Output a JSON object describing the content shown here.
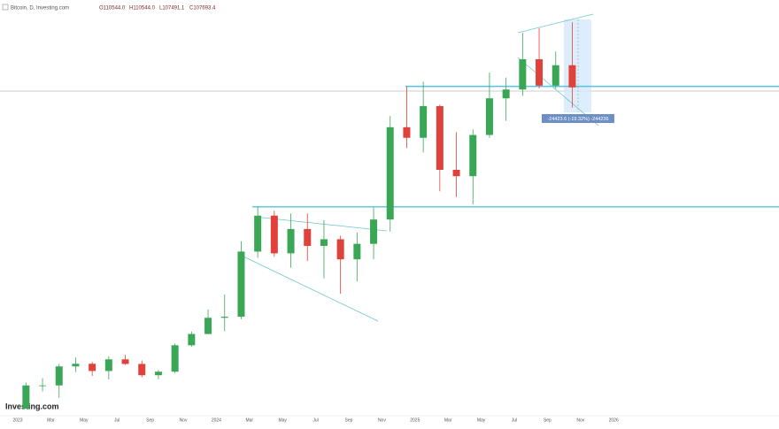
{
  "chart_data": {
    "type": "candlestick",
    "title": "Bitcoin, D, Investing.com",
    "header_values": [
      "O110544.0",
      "H110544.0",
      "L107491.1",
      "C107693.4"
    ],
    "x_labels": [
      "2023",
      "Mar",
      "May",
      "Jul",
      "Sep",
      "Nov",
      "2024",
      "Mar",
      "May",
      "Jul",
      "Sep",
      "Nov",
      "2025",
      "Mar",
      "May",
      "Jul",
      "Sep",
      "Nov",
      "2026"
    ],
    "open": [
      16500,
      23100,
      23100,
      28500,
      29250,
      27200,
      30500,
      29200,
      26000,
      27000,
      34500,
      37700,
      42300,
      42600,
      61100,
      71300,
      60600,
      67500,
      62700,
      64600,
      58900,
      63300,
      70200,
      96400,
      93400,
      102400,
      84300,
      82500,
      94200,
      104600,
      107100,
      115700,
      108200,
      114000
    ],
    "high": [
      23900,
      25200,
      29200,
      31000,
      29800,
      31400,
      31800,
      30200,
      27500,
      35000,
      38400,
      44700,
      48900,
      64000,
      73800,
      72700,
      71900,
      71900,
      70000,
      65600,
      66500,
      73600,
      99600,
      108000,
      109300,
      102800,
      95000,
      95800,
      111900,
      110500,
      123200,
      124500,
      117900,
      126200
    ],
    "low": [
      16500,
      21400,
      19600,
      26900,
      25800,
      24800,
      28900,
      25400,
      24900,
      26600,
      34100,
      37600,
      38500,
      41900,
      59300,
      59600,
      56500,
      58400,
      53500,
      49100,
      52600,
      58900,
      66800,
      90500,
      89200,
      78200,
      76600,
      74500,
      93400,
      98200,
      105300,
      107400,
      107300,
      102000
    ],
    "close": [
      23100,
      23100,
      28500,
      29250,
      27200,
      30500,
      29200,
      26000,
      27000,
      34500,
      37700,
      42300,
      42600,
      61100,
      71300,
      60600,
      67500,
      62700,
      64600,
      58900,
      63300,
      70200,
      96400,
      93400,
      102400,
      84300,
      82500,
      94200,
      104600,
      107100,
      115700,
      108200,
      114000,
      107700
    ],
    "levels": [
      73800,
      108000
    ],
    "measurement": "-24423.6 (-19.32%) -244236",
    "logo": "Investing.com",
    "ylim": [
      15000,
      130000
    ],
    "up_color": "#3aa757",
    "down_color": "#e0413a",
    "level_color": "#53c3e0"
  }
}
